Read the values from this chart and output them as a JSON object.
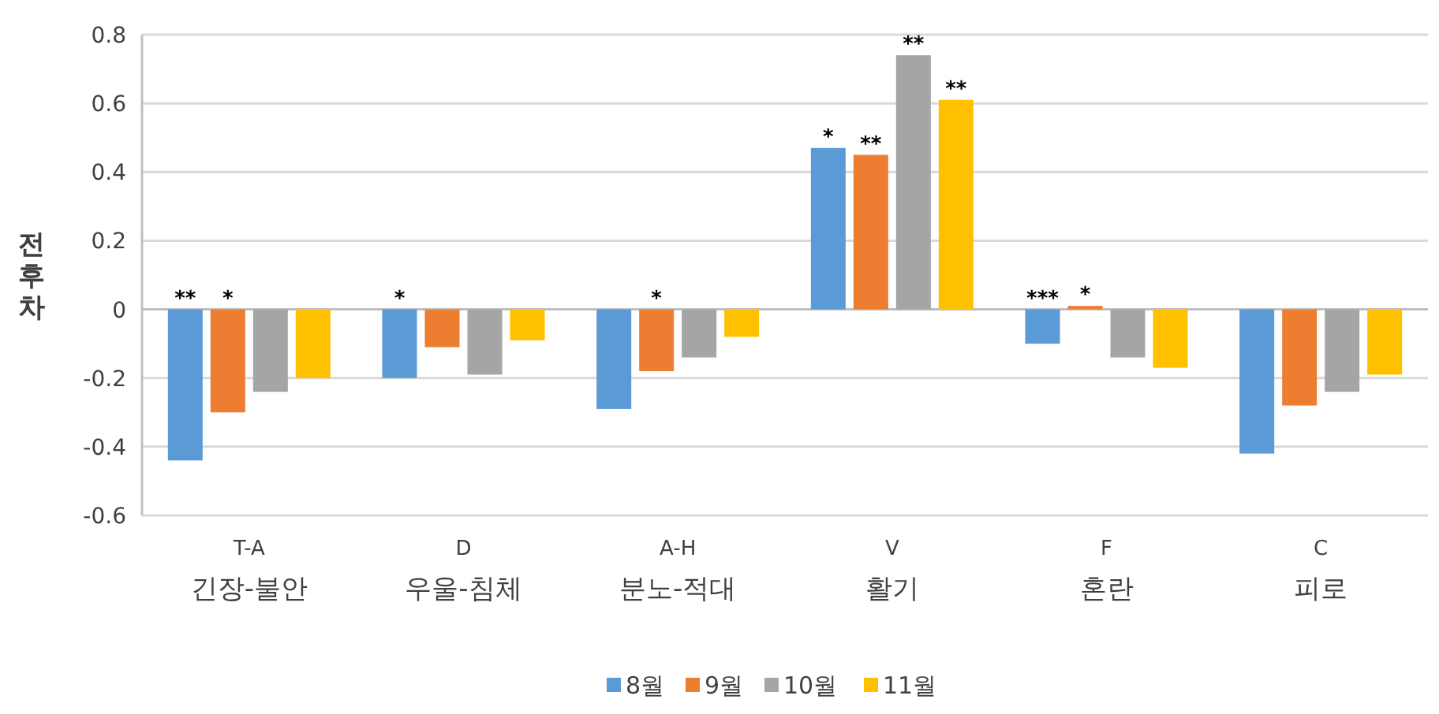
{
  "chart_data": {
    "type": "bar",
    "ylabel": "전후차",
    "categories": [
      "T-A\n긴장-불안",
      "D\n우울-침체",
      "A-H\n분노-적대",
      "V\n활기",
      "F\n혼란",
      "C\n피로"
    ],
    "series": [
      {
        "name": "8월",
        "color": "#5b9bd5",
        "values": [
          -0.44,
          -0.2,
          -0.29,
          0.47,
          -0.1,
          -0.42
        ],
        "value_labels": [
          "**",
          "*",
          null,
          "*",
          "***",
          null
        ]
      },
      {
        "name": "9월",
        "color": "#ed7d31",
        "values": [
          -0.3,
          -0.11,
          -0.18,
          0.45,
          0.01,
          -0.28
        ],
        "value_labels": [
          "*",
          null,
          "*",
          "**",
          "*",
          null
        ]
      },
      {
        "name": "10월",
        "color": "#a5a5a5",
        "values": [
          -0.24,
          -0.19,
          -0.14,
          0.74,
          -0.14,
          -0.24
        ],
        "value_labels": [
          null,
          null,
          null,
          "**",
          null,
          null
        ]
      },
      {
        "name": "11월",
        "color": "#ffc000",
        "values": [
          -0.2,
          -0.09,
          -0.08,
          0.61,
          -0.17,
          -0.19
        ],
        "value_labels": [
          null,
          null,
          null,
          "**",
          null,
          null
        ]
      }
    ],
    "ylim": [
      -0.6,
      0.8
    ],
    "yticks": [
      -0.6,
      -0.4,
      -0.2,
      0,
      0.2,
      0.4,
      0.6,
      0.8
    ],
    "grid": "y",
    "legend": "bottom"
  }
}
